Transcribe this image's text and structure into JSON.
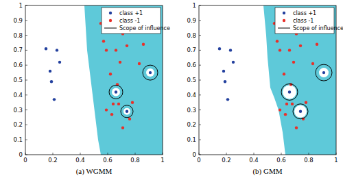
{
  "chart_data": [
    {
      "type": "scatter",
      "title": "(a) WGMM",
      "xlim": [
        0,
        1
      ],
      "ylim": [
        0,
        1
      ],
      "xticks": [
        0,
        0.2,
        0.4,
        0.6,
        0.8,
        1
      ],
      "yticks": [
        0,
        0.1,
        0.2,
        0.3,
        0.4,
        0.5,
        0.6,
        0.7,
        0.8,
        0.9,
        1
      ],
      "legend": "upper right",
      "region": {
        "color": "#5ec9d9",
        "boundary_x": [
          0.43,
          0.44,
          0.45,
          0.47,
          0.49,
          0.51,
          0.53,
          0.55
        ],
        "boundary_y": [
          1,
          0.85,
          0.7,
          0.55,
          0.4,
          0.25,
          0.1,
          0
        ],
        "hole_radius": [
          0.03,
          0.03,
          0.025
        ]
      },
      "series": [
        {
          "name": "class +1",
          "color": "#23409e",
          "marker": "circle",
          "x": [
            0.15,
            0.23,
            0.25,
            0.18,
            0.19,
            0.21,
            0.91,
            0.66,
            0.74
          ],
          "y": [
            0.71,
            0.7,
            0.62,
            0.56,
            0.49,
            0.37,
            0.55,
            0.42,
            0.29
          ]
        },
        {
          "name": "class -1",
          "color": "#e8302a",
          "marker": "circle",
          "x": [
            0.55,
            0.57,
            0.59,
            0.66,
            0.71,
            0.74,
            0.86,
            0.69,
            0.83,
            0.62,
            0.67,
            0.59,
            0.63,
            0.64,
            0.68,
            0.78,
            0.76,
            0.71
          ],
          "y": [
            0.88,
            0.76,
            0.7,
            0.7,
            0.81,
            0.73,
            0.74,
            0.62,
            0.61,
            0.54,
            0.47,
            0.3,
            0.27,
            0.34,
            0.34,
            0.35,
            0.24,
            0.18
          ]
        },
        {
          "name": "Scope of influence",
          "type": "circle",
          "color": "#000000",
          "line_style": "solid",
          "x": [
            0.91,
            0.66,
            0.74
          ],
          "y": [
            0.55,
            0.42,
            0.29
          ],
          "radius": [
            0.055,
            0.05,
            0.045
          ]
        }
      ]
    },
    {
      "type": "scatter",
      "title": "(b) GMM",
      "xlim": [
        0,
        1
      ],
      "ylim": [
        0,
        1
      ],
      "xticks": [
        0,
        0.2,
        0.4,
        0.6,
        0.8,
        1
      ],
      "yticks": [
        0,
        0.1,
        0.2,
        0.3,
        0.4,
        0.5,
        0.6,
        0.7,
        0.8,
        0.9,
        1
      ],
      "legend": "upper right",
      "region": {
        "color": "#5ec9d9",
        "boundary_x": [
          0.47,
          0.49,
          0.5,
          0.51,
          0.52,
          0.55,
          0.58,
          0.61,
          0.63
        ],
        "boundary_y": [
          1,
          0.8,
          0.65,
          0.55,
          0.45,
          0.38,
          0.3,
          0.15,
          0
        ],
        "hole_radius": [
          0.035,
          0.05,
          0.045
        ]
      },
      "series": [
        {
          "name": "class +1",
          "color": "#23409e",
          "marker": "circle",
          "x": [
            0.15,
            0.23,
            0.25,
            0.18,
            0.19,
            0.21,
            0.91,
            0.66,
            0.74
          ],
          "y": [
            0.71,
            0.7,
            0.62,
            0.56,
            0.49,
            0.37,
            0.55,
            0.42,
            0.29
          ]
        },
        {
          "name": "class -1",
          "color": "#e8302a",
          "marker": "circle",
          "x": [
            0.55,
            0.57,
            0.59,
            0.66,
            0.71,
            0.74,
            0.86,
            0.69,
            0.83,
            0.62,
            0.67,
            0.59,
            0.63,
            0.64,
            0.68,
            0.78,
            0.76,
            0.71
          ],
          "y": [
            0.88,
            0.76,
            0.7,
            0.7,
            0.81,
            0.73,
            0.74,
            0.62,
            0.61,
            0.54,
            0.47,
            0.3,
            0.27,
            0.34,
            0.34,
            0.35,
            0.24,
            0.18
          ]
        },
        {
          "name": "Scope of influence",
          "type": "circle",
          "color": "#000000",
          "line_style": "solid",
          "x": [
            0.91,
            0.66,
            0.74
          ],
          "y": [
            0.55,
            0.42,
            0.29
          ],
          "radius": [
            0.06,
            0.06,
            0.055
          ]
        }
      ]
    }
  ]
}
